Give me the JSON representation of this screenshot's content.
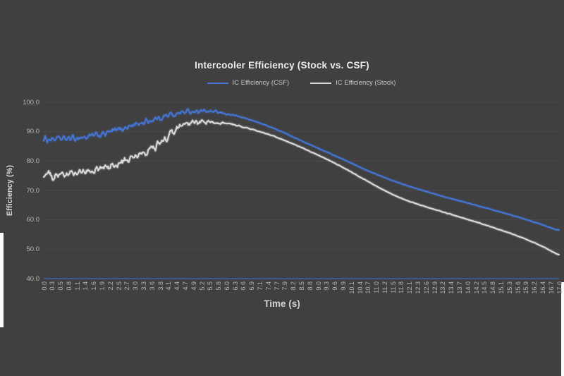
{
  "page": {
    "background_color": "#404040"
  },
  "header": {
    "title": "Intercooler Efficiency (Stock vs. CSF)"
  },
  "legend": {
    "items": [
      {
        "label": "IC Efficiency (CSF)",
        "color": "#4573d2"
      },
      {
        "label": "IC Efficiency (Stock)",
        "color": "#d8d8d8"
      }
    ]
  },
  "axes": {
    "y_label": "Efficiency (%)",
    "x_label": "Time (s)"
  },
  "chart_data": {
    "type": "line",
    "title": "Intercooler Efficiency (Stock vs. CSF)",
    "xlabel": "Time (s)",
    "ylabel": "Efficiency (%)",
    "xlim": [
      0,
      17
    ],
    "ylim": [
      40,
      100
    ],
    "grid": "horizontal",
    "legend_position": "top",
    "grid_color": "#4a4a4a",
    "axis_line_color": "#3a5da8",
    "tick_color": "#b5b5b5",
    "y_tick_values": [
      100,
      90,
      80,
      70,
      60,
      50,
      40
    ],
    "y_tick_labels": [
      "100.0",
      "90.0",
      "80.0",
      "70.0",
      "60.0",
      "50.0",
      "40.0"
    ],
    "x_tick_labels": [
      "0.0",
      "0.3",
      "0.5",
      "0.8",
      "1.1",
      "1.4",
      "1.6",
      "1.9",
      "2.2",
      "2.5",
      "2.7",
      "3.0",
      "3.3",
      "3.6",
      "3.8",
      "4.1",
      "4.4",
      "4.7",
      "4.9",
      "5.2",
      "5.5",
      "5.8",
      "6.0",
      "6.3",
      "6.6",
      "6.9",
      "7.1",
      "7.4",
      "7.7",
      "7.9",
      "8.2",
      "8.5",
      "8.8",
      "9.0",
      "9.3",
      "9.6",
      "9.9",
      "10.1",
      "10.4",
      "10.7",
      "11.0",
      "11.2",
      "11.5",
      "11.8",
      "12.1",
      "12.3",
      "12.6",
      "12.9",
      "13.2",
      "13.4",
      "13.7",
      "14.0",
      "14.2",
      "14.5",
      "14.8",
      "15.1",
      "15.3",
      "15.6",
      "15.9",
      "16.2",
      "16.4",
      "16.7",
      "17.0"
    ],
    "x": [
      0,
      0.5,
      1,
      1.5,
      2,
      2.5,
      3,
      3.5,
      4,
      4.5,
      5,
      5.5,
      6,
      6.5,
      7,
      7.5,
      8,
      8.5,
      9,
      9.5,
      10,
      10.5,
      11,
      11.5,
      12,
      12.5,
      13,
      13.5,
      14,
      14.5,
      15,
      15.5,
      16,
      16.5,
      17
    ],
    "series": [
      {
        "name": "IC Efficiency (CSF)",
        "color": "#4573d2",
        "noise_amp": 0.95,
        "values": [
          87.5,
          87.5,
          87.8,
          88.3,
          89.3,
          90.8,
          92.3,
          93.8,
          95.2,
          96.4,
          97.0,
          96.8,
          96.1,
          95.0,
          93.4,
          91.5,
          89.3,
          86.9,
          84.6,
          82.3,
          80.0,
          77.6,
          75.4,
          73.4,
          71.6,
          70.0,
          68.5,
          67.1,
          65.7,
          64.3,
          62.9,
          61.4,
          59.8,
          58.2,
          56.5
        ]
      },
      {
        "name": "IC Efficiency (Stock)",
        "color": "#d8d8d8",
        "noise_amp": 1.2,
        "values": [
          75.5,
          75.2,
          75.7,
          76.4,
          77.6,
          79.2,
          81.2,
          83.6,
          87.2,
          91.3,
          93.0,
          93.2,
          92.8,
          91.8,
          90.4,
          88.8,
          86.8,
          84.6,
          82.3,
          79.8,
          77.1,
          74.2,
          71.3,
          68.7,
          66.5,
          64.8,
          63.2,
          61.7,
          60.1,
          58.5,
          56.8,
          55.0,
          53.0,
          50.7,
          48.2
        ]
      }
    ],
    "noise_fade_start": 4.3,
    "noise_fade_end": 6.8
  }
}
